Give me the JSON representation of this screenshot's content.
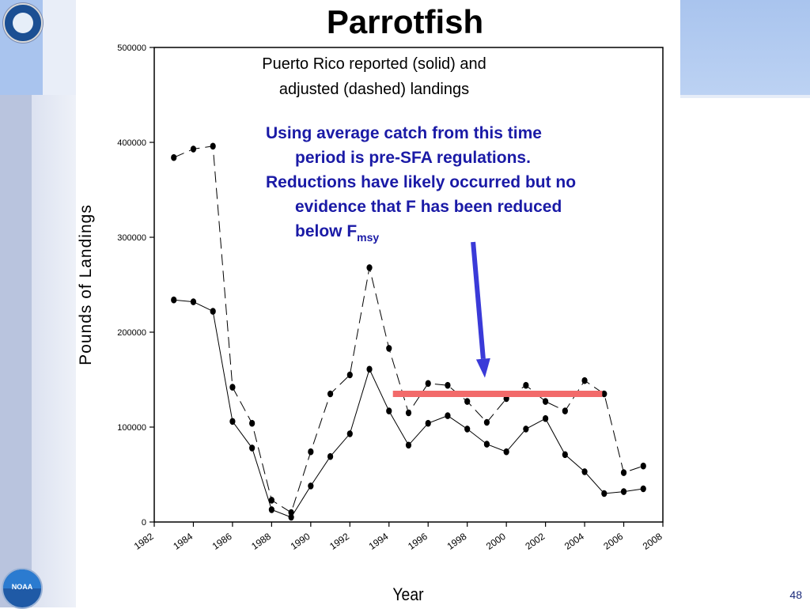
{
  "slide": {
    "title": "Parrotfish",
    "page_number": "48",
    "seal_icon": "dept-of-commerce-seal-icon",
    "noaa_logo_text": "NOAA"
  },
  "annotation": {
    "line1": "Using average catch from this time",
    "line2": "period is pre-SFA regulations.",
    "line3": "Reductions have likely occurred but no",
    "line4": "evidence that F has been reduced",
    "line5_prefix": "below F",
    "line5_subscript": "msy",
    "color": "#1a1aa6",
    "arrow_color": "#3a3ad8",
    "highlight_color": "#f26a6a"
  },
  "chart_data": {
    "type": "line",
    "title_line1": "Puerto Rico reported (solid) and",
    "title_line2": "adjusted (dashed) landings",
    "xlabel": "Year",
    "ylabel": "Pounds of Landings",
    "xlim": [
      1982,
      2008
    ],
    "ylim": [
      0,
      500000
    ],
    "xticks": [
      1982,
      1984,
      1986,
      1988,
      1990,
      1992,
      1994,
      1996,
      1998,
      2000,
      2002,
      2004,
      2006,
      2008
    ],
    "yticks": [
      0,
      100000,
      200000,
      300000,
      400000,
      500000
    ],
    "x": [
      1983,
      1984,
      1985,
      1986,
      1987,
      1988,
      1989,
      1990,
      1991,
      1992,
      1993,
      1994,
      1995,
      1996,
      1997,
      1998,
      1999,
      2000,
      2001,
      2002,
      2003,
      2004,
      2005,
      2006,
      2007
    ],
    "series": [
      {
        "style": "solid",
        "values": [
          234000,
          232000,
          222000,
          106000,
          78000,
          13000,
          5000,
          38000,
          69000,
          93000,
          161000,
          117000,
          81000,
          104000,
          112000,
          98000,
          82000,
          74000,
          98000,
          109000,
          71000,
          53000,
          30000,
          32000,
          35000
        ]
      },
      {
        "style": "dashed",
        "values": [
          384000,
          393000,
          396000,
          142000,
          104000,
          23000,
          10000,
          74000,
          135000,
          155000,
          268000,
          183000,
          115000,
          146000,
          144000,
          127000,
          105000,
          130000,
          144000,
          127000,
          117000,
          149000,
          135000,
          52000,
          59000
        ]
      }
    ],
    "highlight": {
      "x_start": 1994.2,
      "x_end": 2004.9,
      "y": 135000
    },
    "arrow": {
      "x_start": 1998.3,
      "y_start": 295000,
      "x_end": 1998.9,
      "y_end": 152000
    }
  }
}
